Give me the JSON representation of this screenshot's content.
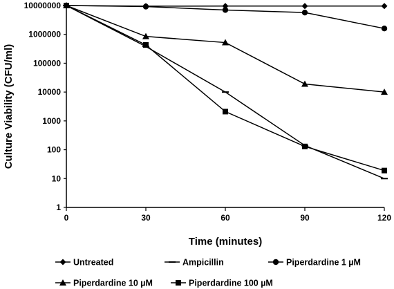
{
  "chart_data": {
    "type": "line",
    "title": "",
    "xlabel": "Time (minutes)",
    "ylabel": "Culture Viability (CFU/ml)",
    "x": [
      0,
      30,
      60,
      90,
      120
    ],
    "x_ticks": [
      "0",
      "30",
      "60",
      "90",
      "120"
    ],
    "xlim": [
      0,
      120
    ],
    "y_scale": "log",
    "ylim": [
      1,
      10000000
    ],
    "y_ticks": [
      "1",
      "10",
      "100",
      "1000",
      "10000",
      "100000",
      "1000000",
      "10000000"
    ],
    "grid": false,
    "legend_position": "bottom",
    "series": [
      {
        "name": "Untreated",
        "marker": "diamond",
        "values": [
          10000000,
          9500000,
          9600000,
          9600000,
          9600000
        ]
      },
      {
        "name": "Ampicillin",
        "marker": "dash",
        "values": [
          10000000,
          380000,
          10000,
          140,
          10
        ]
      },
      {
        "name": "Piperdardine 1 µM",
        "marker": "circle",
        "values": [
          10000000,
          9200000,
          7000000,
          5700000,
          1600000
        ]
      },
      {
        "name": "Piperdardine  10 µM",
        "marker": "triangle",
        "values": [
          10000000,
          850000,
          520000,
          19000,
          10000
        ]
      },
      {
        "name": "Piperdardine 100 µM",
        "marker": "square",
        "values": [
          10000000,
          430000,
          2100,
          130,
          19
        ]
      }
    ]
  }
}
